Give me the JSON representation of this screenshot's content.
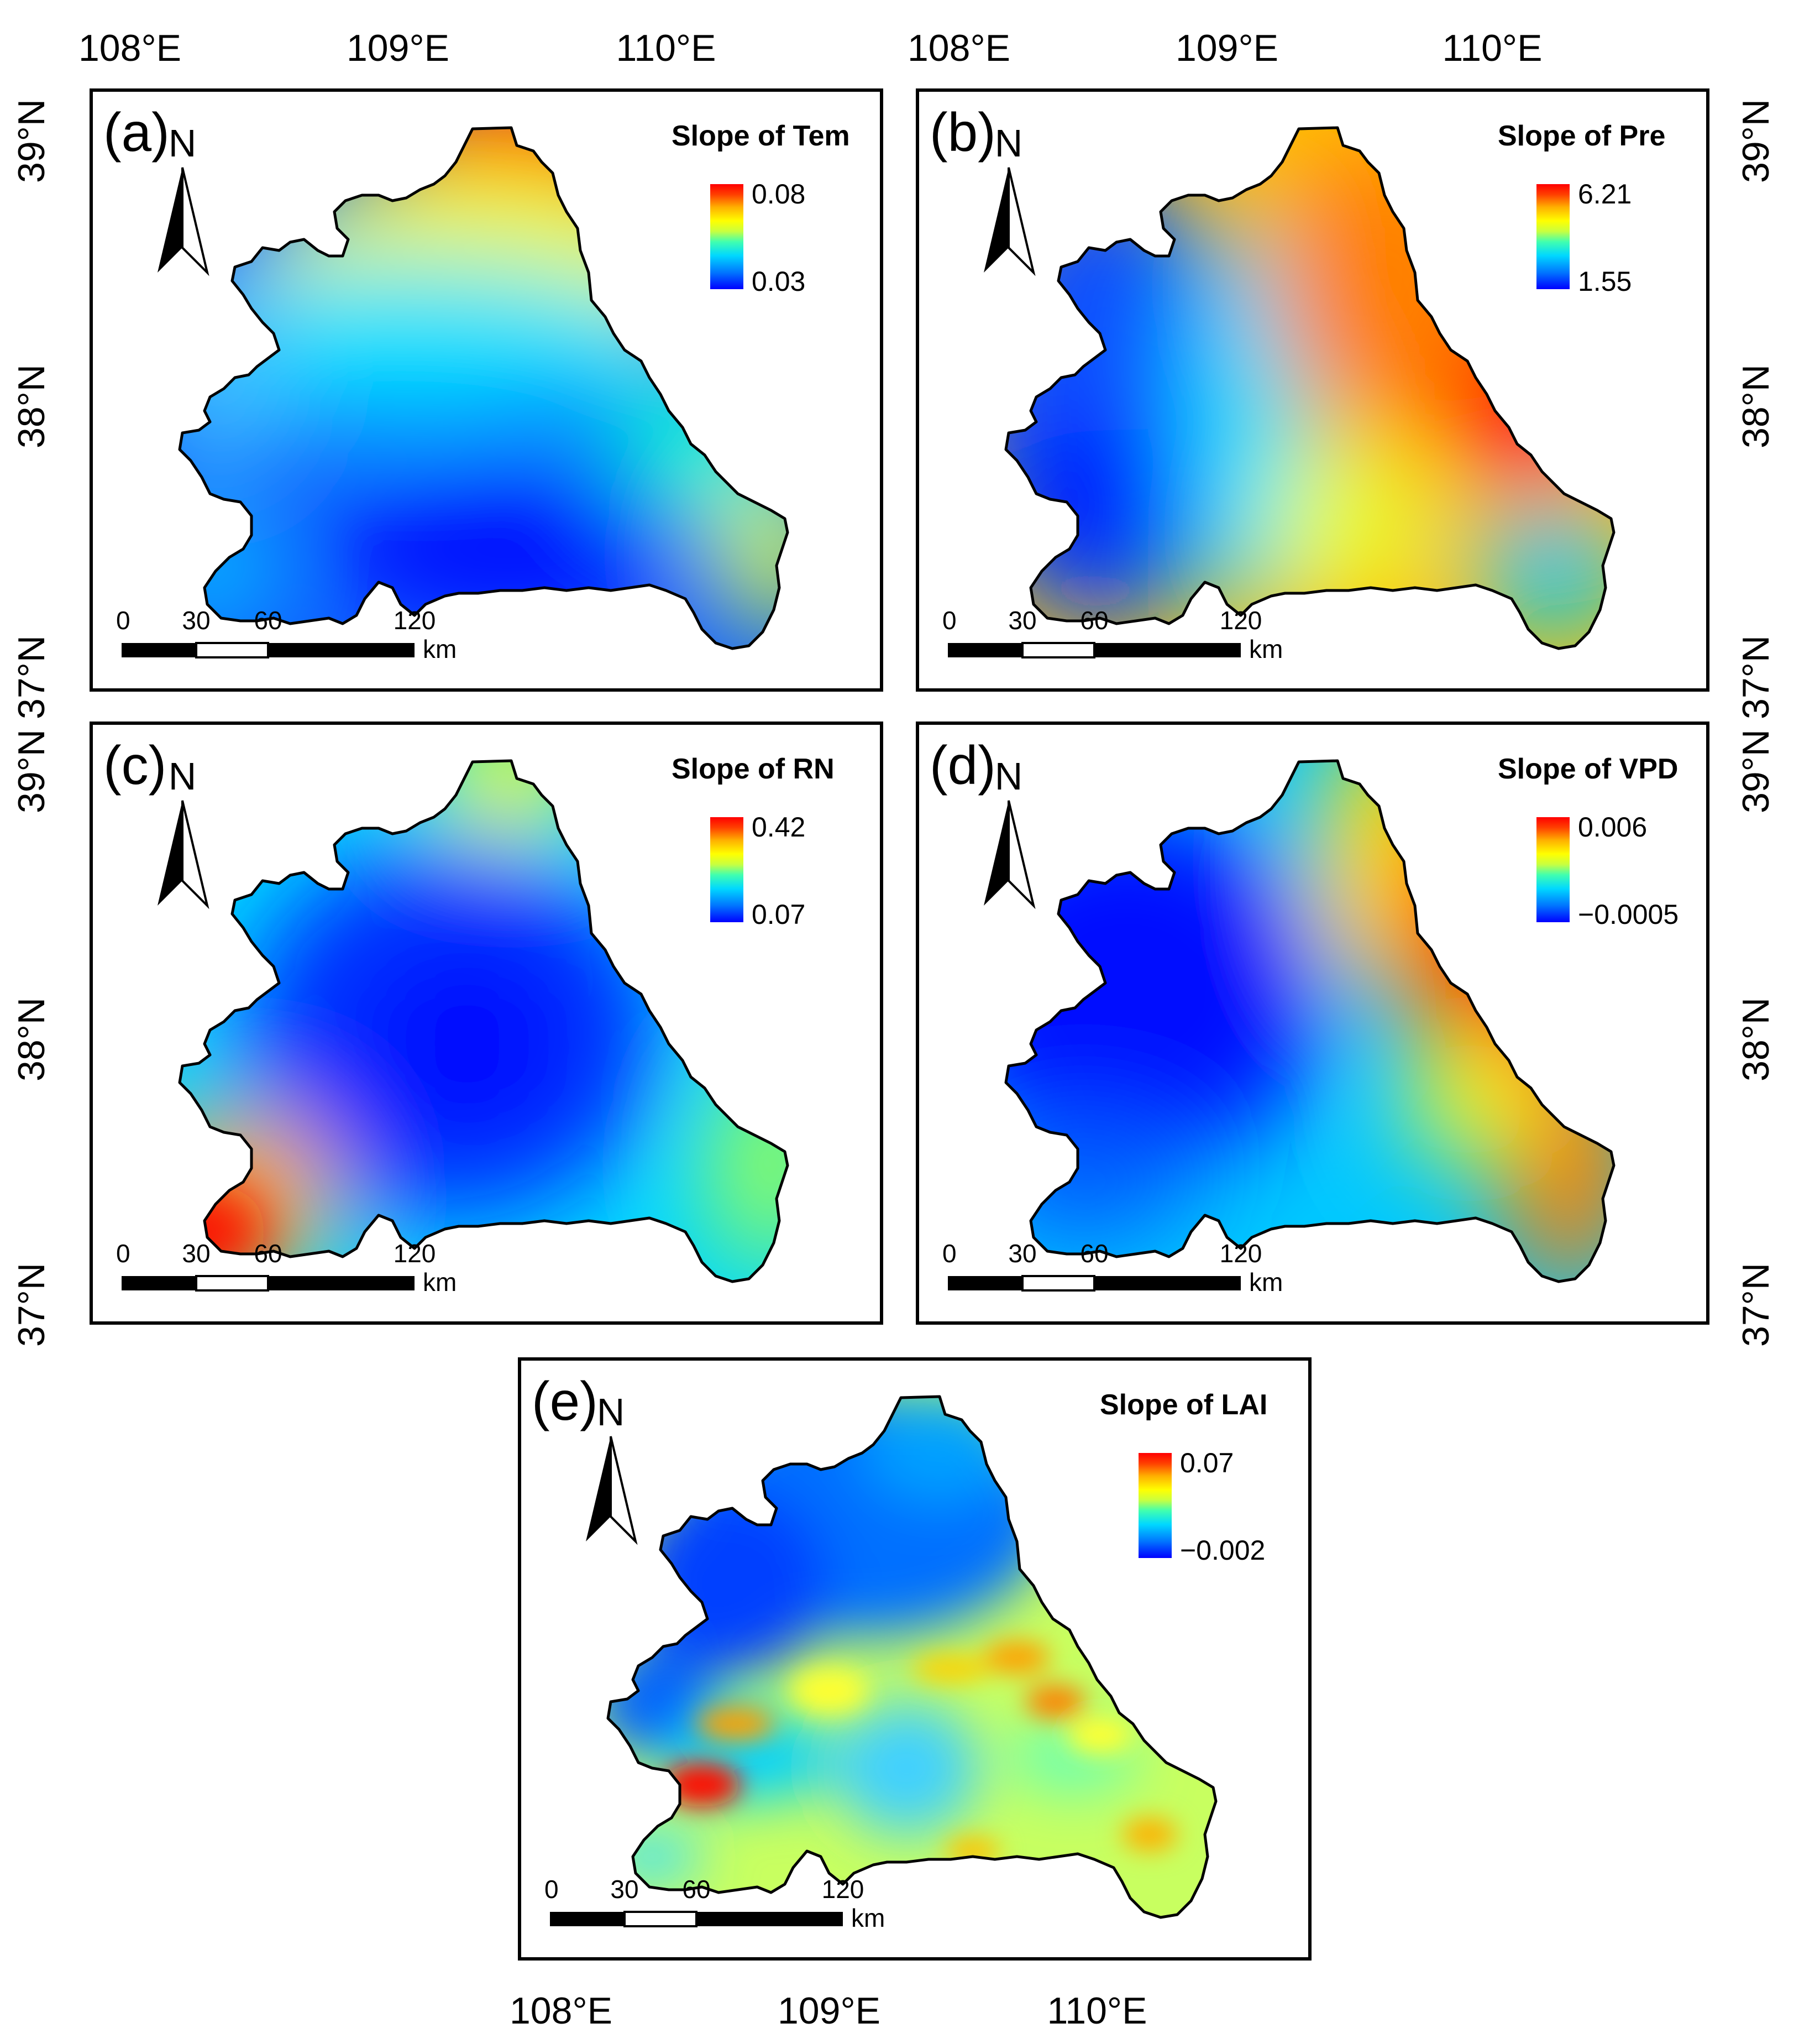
{
  "axes": {
    "top_lon_labels": [
      "108°E",
      "109°E",
      "110°E",
      "108°E",
      "109°E",
      "110°E"
    ],
    "bottom_lon_labels": [
      "108°E",
      "109°E",
      "110°E"
    ],
    "left_lat_labels": [
      "39°N",
      "38°N",
      "37°N",
      "39°N",
      "38°N",
      "37°N"
    ],
    "right_lat_labels": [
      "39°N",
      "38°N",
      "37°N",
      "39°N",
      "38°N",
      "37°N"
    ]
  },
  "scale_bar": {
    "ticks": [
      "0",
      "30",
      "60",
      "120"
    ],
    "unit": "km"
  },
  "north_arrow_letter": "N",
  "panels": [
    {
      "label": "(a)",
      "legend_title": "Slope of Tem",
      "legend_max": "0.08",
      "legend_min": "0.03",
      "pattern": "temperature"
    },
    {
      "label": "(b)",
      "legend_title": "Slope of Pre",
      "legend_max": "6.21",
      "legend_min": "1.55",
      "pattern": "precipitation"
    },
    {
      "label": "(c)",
      "legend_title": "Slope of RN",
      "legend_max": "0.42",
      "legend_min": "0.07",
      "pattern": "radiation"
    },
    {
      "label": "(d)",
      "legend_title": "Slope of VPD",
      "legend_max": "0.006",
      "legend_min": "−0.0005",
      "pattern": "vpd"
    },
    {
      "label": "(e)",
      "legend_title": "Slope of LAI",
      "legend_max": "0.07",
      "legend_min": "−0.002",
      "pattern": "lai"
    }
  ],
  "colors": {
    "ramp": [
      "#0000ff",
      "#0070ff",
      "#00d8ff",
      "#40ffb0",
      "#c8ff40",
      "#ffff00",
      "#ffb000",
      "#ff4000",
      "#ff0000"
    ]
  }
}
